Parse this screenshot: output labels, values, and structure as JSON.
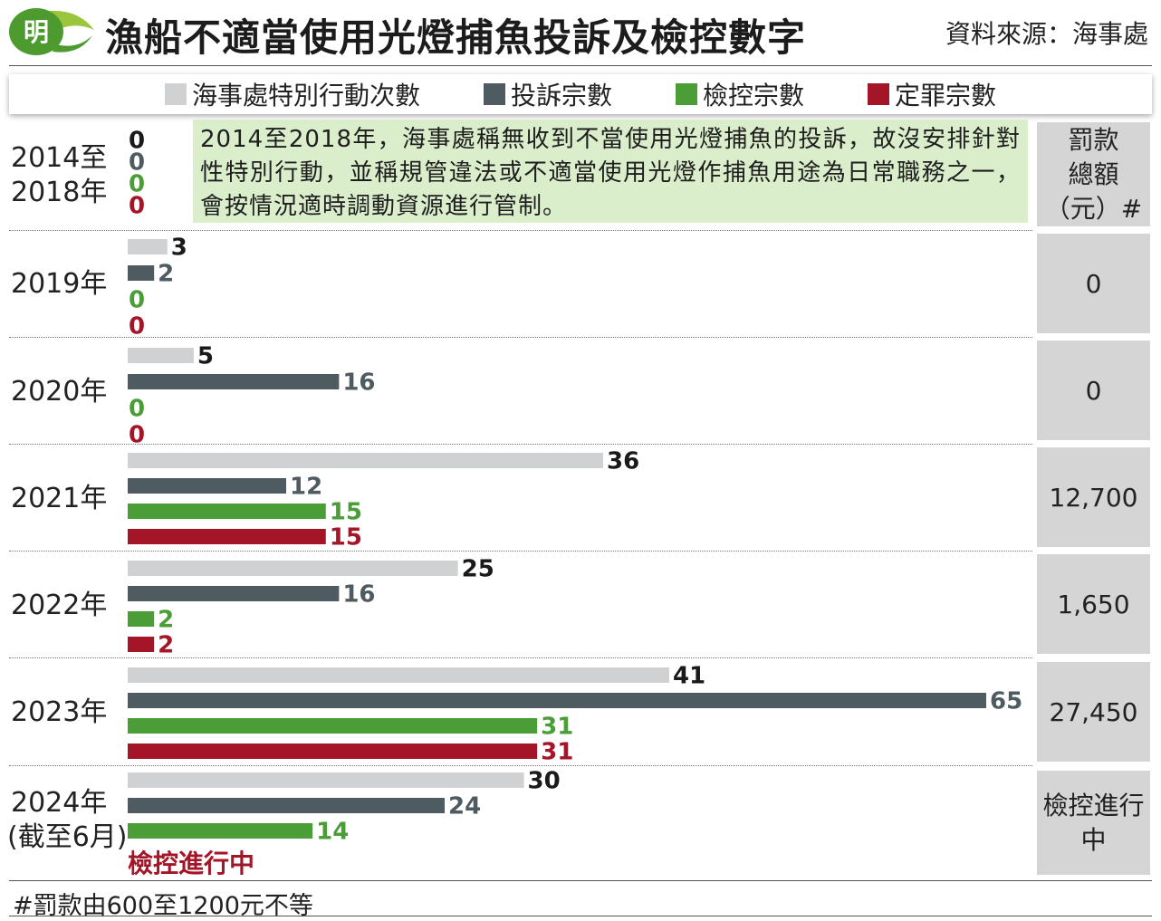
{
  "logo": {
    "char": "明",
    "colors": {
      "bg": "#4d9a2f",
      "fg": "#ffffff"
    }
  },
  "title": "漁船不適當使用光燈捕魚投訴及檢控數字",
  "source": "資料來源：海事處",
  "note": "2014至2018年，海事處稱無收到不當使用光燈捕魚的投訴，故沒安排針對性特別行動，並稱規管違法或不適當使用光燈作捕魚用途為日常職務之一，會按情況適時調動資源進行管制。",
  "fine_header": {
    "line1": "罰款",
    "line2": "總額",
    "line3": "（元）#"
  },
  "footnote": "#罰款由600至1200元不等",
  "colors": {
    "special_ops": "#cfd1d3",
    "complaints": "#4e5b60",
    "prosecutions": "#4a9d37",
    "convictions": "#a41527",
    "note_bg": "#dbeecb",
    "fine_bg": "#d5d5d5"
  },
  "chart_data": {
    "type": "bar",
    "orientation": "horizontal",
    "categories": [
      "2014至2018年",
      "2019年",
      "2020年",
      "2021年",
      "2022年",
      "2023年",
      "2024年(截至6月)"
    ],
    "series": [
      {
        "name": "海事處特別行動次數",
        "values": [
          0,
          3,
          5,
          36,
          25,
          41,
          30
        ]
      },
      {
        "name": "投訴宗數",
        "values": [
          0,
          2,
          16,
          12,
          16,
          65,
          24
        ]
      },
      {
        "name": "檢控宗數",
        "values": [
          0,
          0,
          0,
          15,
          2,
          31,
          14
        ]
      },
      {
        "name": "定罪宗數",
        "values": [
          0,
          0,
          0,
          15,
          2,
          31,
          null
        ]
      }
    ],
    "fines": [
      "0",
      "0",
      "12,700",
      "1,650",
      "27,450",
      "檢控進行中"
    ],
    "pending_text": "檢控進行中",
    "xlim": [
      0,
      65
    ]
  }
}
